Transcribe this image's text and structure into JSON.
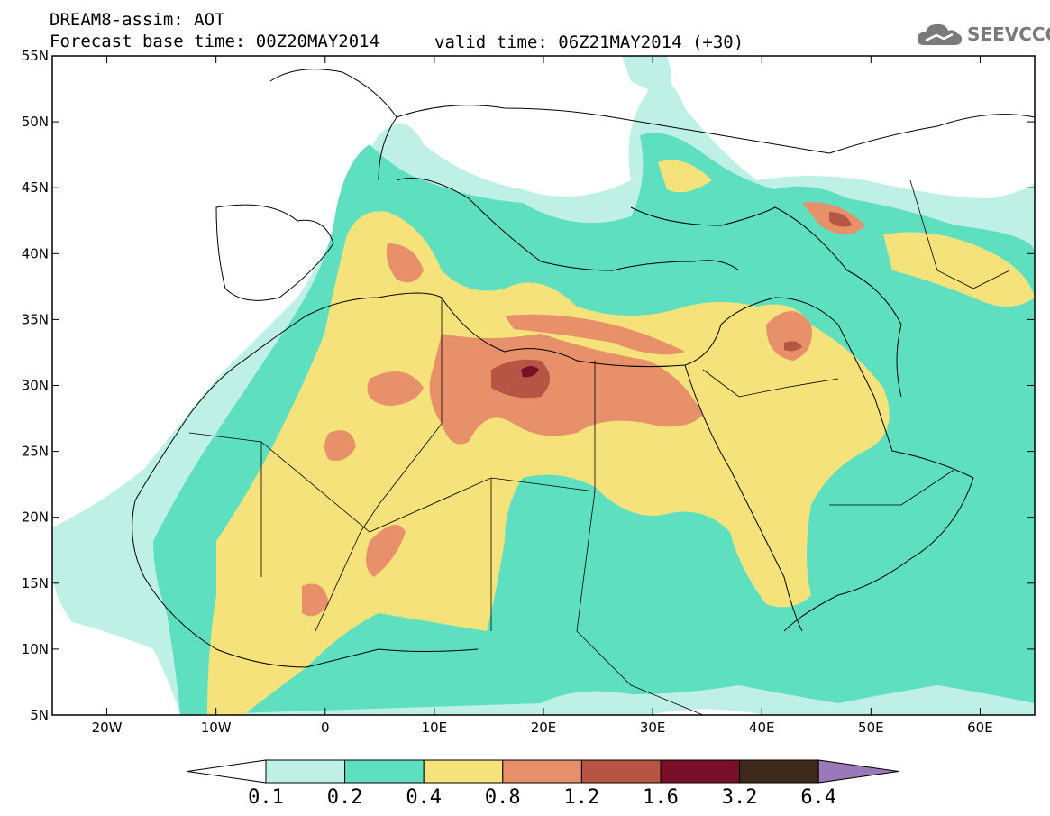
{
  "header": {
    "title_line1": "DREAM8-assim: AOT",
    "title_line2": "Forecast base time: 00Z20MAY2014",
    "valid_time": "valid time: 06Z21MAY2014 (+30)"
  },
  "logo": {
    "text": "SEEVCCC",
    "icon": "cloud-icon"
  },
  "map": {
    "lat_ticks": [
      "55N",
      "50N",
      "45N",
      "40N",
      "35N",
      "30N",
      "25N",
      "20N",
      "15N",
      "10N",
      "5N"
    ],
    "lon_ticks": [
      "20W",
      "10W",
      "0",
      "10E",
      "20E",
      "30E",
      "40E",
      "50E",
      "60E"
    ],
    "lat_range": [
      5,
      55
    ],
    "lon_range": [
      -25,
      65
    ]
  },
  "colorbar": {
    "labels": [
      "0.1",
      "0.2",
      "0.4",
      "0.8",
      "1.2",
      "1.6",
      "3.2",
      "6.4"
    ],
    "colors": {
      "under": "#ffffff",
      "c1": "#bff0e6",
      "c2": "#5ee0c0",
      "c3": "#f5e27a",
      "c4": "#e8906a",
      "c5": "#b75545",
      "c6": "#7a0f2a",
      "c7": "#3d2a1a",
      "over": "#9b78b8"
    }
  }
}
